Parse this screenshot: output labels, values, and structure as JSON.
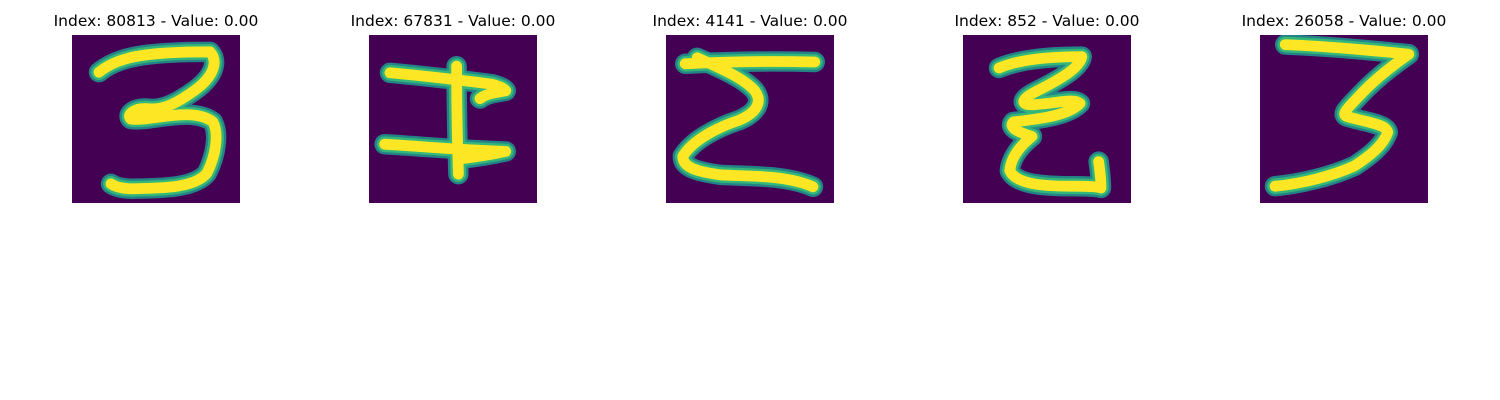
{
  "colors": {
    "background": "#440154",
    "stroke_core": "#fde725",
    "stroke_edge": "#35b779",
    "stroke_mid": "#21918c"
  },
  "panels": [
    {
      "title": "Index: 80813 - Value: 0.00",
      "glyph": "3"
    },
    {
      "title": "Index: 67831 - Value: 0.00",
      "glyph": "I"
    },
    {
      "title": "Index: 4141 - Value: 0.00",
      "glyph": "Σ"
    },
    {
      "title": "Index: 852 - Value: 0.00",
      "glyph": "Z"
    },
    {
      "title": "Index: 26058 - Value: 0.00",
      "glyph": "3"
    }
  ]
}
